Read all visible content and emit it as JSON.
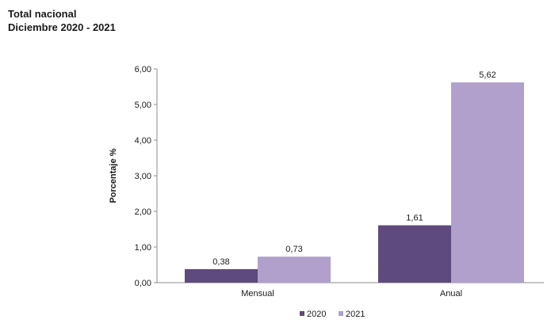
{
  "header": {
    "title": "Total nacional",
    "subtitle": "Diciembre 2020 - 2021"
  },
  "chart_data": {
    "type": "bar",
    "title": "Total nacional",
    "subtitle": "Diciembre 2020 - 2021",
    "xlabel": "",
    "ylabel": "Porcentaje %",
    "categories": [
      "Mensual",
      "Anual"
    ],
    "series": [
      {
        "name": "2020",
        "color": "#5e4a7d",
        "values": [
          0.38,
          1.61
        ],
        "labels": [
          "0,38",
          "1,61"
        ]
      },
      {
        "name": "2021",
        "color": "#b0a0cb",
        "values": [
          0.73,
          5.62
        ],
        "labels": [
          "0,73",
          "5,62"
        ]
      }
    ],
    "ylim": [
      0,
      6
    ],
    "yticks": [
      0,
      1,
      2,
      3,
      4,
      5,
      6
    ],
    "ytick_labels": [
      "0,00",
      "1,00",
      "2,00",
      "3,00",
      "4,00",
      "5,00",
      "6,00"
    ],
    "grid": false,
    "legend_position": "bottom"
  }
}
